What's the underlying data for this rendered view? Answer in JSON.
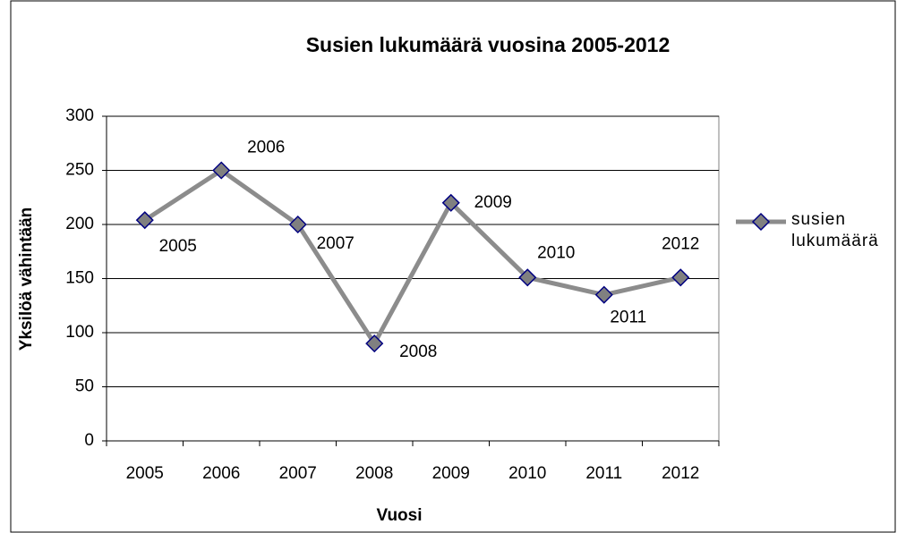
{
  "chart_data": {
    "type": "line",
    "title": "Susien lukumäärä vuosina 2005-2012",
    "x_label": "Vuosi",
    "y_label": "Yksilöä vähintään",
    "categories": [
      "2005",
      "2006",
      "2007",
      "2008",
      "2009",
      "2010",
      "2011",
      "2012"
    ],
    "series": [
      {
        "name": "susien lukumäärä",
        "color": "#8c8c8c",
        "marker_fill": "#808080",
        "marker_stroke": "#000080",
        "values": [
          204,
          250,
          200,
          90,
          220,
          151,
          135,
          151
        ]
      }
    ],
    "ylim": [
      0,
      300
    ],
    "yticks": [
      0,
      50,
      100,
      150,
      200,
      250,
      300
    ],
    "grid": true,
    "legend": "right"
  }
}
